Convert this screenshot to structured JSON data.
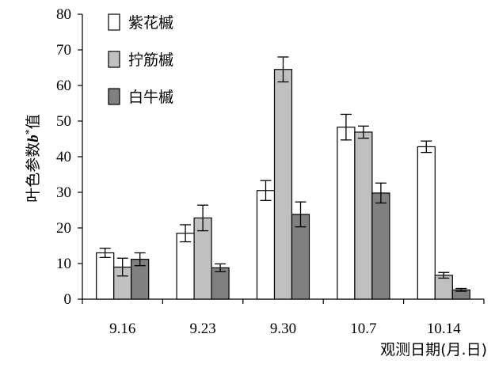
{
  "chart_data": {
    "type": "bar",
    "xlabel": "观测日期(月.日)",
    "ylabel": {
      "prefix": "叶色参数",
      "variable": "b",
      "superscript": "*",
      "suffix": "值"
    },
    "ylim": [
      0,
      80
    ],
    "yticks": [
      0,
      10,
      20,
      30,
      40,
      50,
      60,
      70,
      80
    ],
    "categories": [
      "9.16",
      "9.23",
      "9.30",
      "10.7",
      "10.14"
    ],
    "series": [
      {
        "name": "紫花槭",
        "color": "#ffffff",
        "values": [
          13.0,
          18.5,
          30.5,
          48.3,
          42.8
        ],
        "errors": [
          1.3,
          2.4,
          2.8,
          3.6,
          1.6
        ]
      },
      {
        "name": "拧筋槭",
        "color": "#c0c0c0",
        "values": [
          9.0,
          22.8,
          64.5,
          46.9,
          6.7
        ],
        "errors": [
          2.5,
          3.6,
          3.5,
          1.7,
          0.8
        ]
      },
      {
        "name": "白牛槭",
        "color": "#808080",
        "values": [
          11.2,
          8.8,
          23.8,
          29.8,
          2.6
        ],
        "errors": [
          1.8,
          1.1,
          3.5,
          2.8,
          0.4
        ]
      }
    ],
    "legend_position": "top-left",
    "grid": false,
    "error_bars": true
  }
}
